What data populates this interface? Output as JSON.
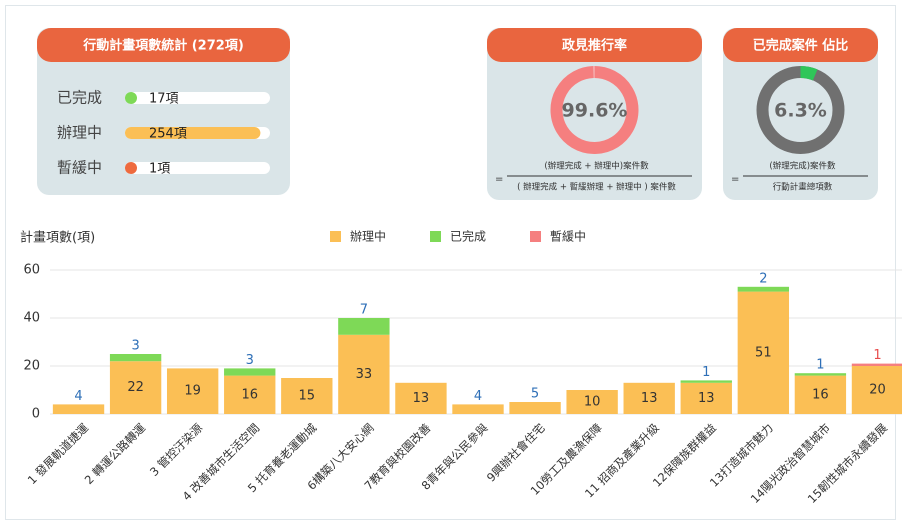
{
  "chart_data": [
    {
      "type": "status",
      "title": "行動計畫項數統計 (272項)",
      "categories": [
        "已完成",
        "辦理中",
        "暫緩中"
      ],
      "values": [
        17,
        254,
        1
      ],
      "value_labels": [
        "17項",
        "254項",
        "1項"
      ],
      "colors": [
        "#7ed957",
        "#fbbf55",
        "#ee6a3e"
      ],
      "xlim": [
        0,
        272
      ]
    },
    {
      "type": "donut",
      "title": "政見推行率",
      "values": [
        99.6
      ],
      "value_labels": [
        "99.6%"
      ],
      "color": "#f57f7f",
      "track_color": "#f5c9c9",
      "formula_sign": "=",
      "formula_numerator": "(辦理完成 + 辦理中)案件數",
      "formula_denominator": "( 辦理完成 + 暫緩辦理 + 辦理中 ) 案件數"
    },
    {
      "type": "donut",
      "title": "已完成案件 佔比",
      "values": [
        6.3
      ],
      "value_labels": [
        "6.3%"
      ],
      "color": "#2fc659",
      "track_color": "#707070",
      "formula_sign": "=",
      "formula_numerator": "(辦理完成)案件數",
      "formula_denominator": "行動計畫總項數"
    },
    {
      "type": "stacked_bar",
      "y_label": "計畫項數(項)",
      "categories": [
        "1 發展軌道捷運",
        "2 轉運公路轉運",
        "3 管控汙染源",
        "4 改善城市生活空間",
        "5 托育養老運動城",
        "6構築八大安心網",
        "7教育與校園改善",
        "8青年與公民參與",
        "9興辦社會住宅",
        "10勞工及農漁保障",
        "11 招商及產業升級",
        "12保障族群權益",
        "13打造城市魅力",
        "14陽光政治智慧城市",
        "15韌性城市永續發展"
      ],
      "series": [
        {
          "name": "辦理中",
          "color": "#fbbf55",
          "values": [
            4,
            22,
            19,
            16,
            15,
            33,
            13,
            4,
            5,
            10,
            13,
            13,
            51,
            16,
            20
          ]
        },
        {
          "name": "已完成",
          "color": "#7ed957",
          "values": [
            null,
            3,
            null,
            3,
            null,
            7,
            null,
            null,
            null,
            null,
            null,
            1,
            2,
            1,
            null
          ]
        },
        {
          "name": "暫緩中",
          "color": "#f57f7f",
          "values": [
            null,
            null,
            null,
            null,
            null,
            null,
            null,
            null,
            null,
            null,
            null,
            null,
            null,
            null,
            1
          ]
        }
      ],
      "ylim": [
        0,
        60
      ],
      "yticks": [
        0,
        20,
        40,
        60
      ],
      "grid": true
    }
  ]
}
